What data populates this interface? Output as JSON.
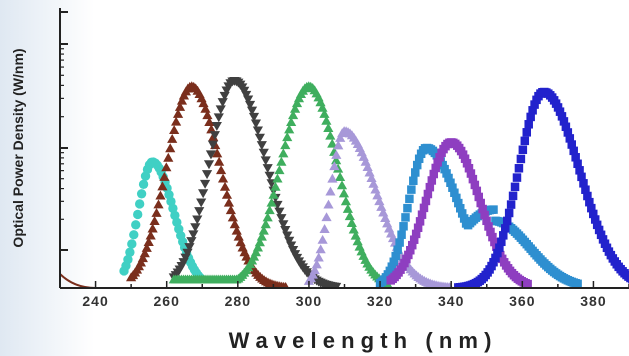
{
  "chart_data": {
    "type": "scatter",
    "xlabel": "W a v e l e n g t h   ( n m )",
    "ylabel": "Optical Power Density (W/nm)",
    "xlim": [
      230,
      390
    ],
    "ylim": [
      0,
      100
    ],
    "x_ticks": [
      240,
      260,
      280,
      300,
      320,
      340,
      360,
      380
    ],
    "legend": "none",
    "grid": false,
    "series": [
      {
        "color": "#40d0c4",
        "marker": "circle",
        "peak": 256,
        "width_left": 4,
        "width_right": 6,
        "amplitude": 45,
        "x_start": 248,
        "x_end": 270
      },
      {
        "color": "#7a2e1c",
        "marker": "triangle-up",
        "peak": 267,
        "width_left": 7,
        "width_right": 8,
        "amplitude": 72,
        "x_start": 250,
        "x_end": 294
      },
      {
        "color": "#404040",
        "marker": "triangle-down",
        "peak": 279,
        "width_left": 7,
        "width_right": 9,
        "amplitude": 74,
        "x_start": 262,
        "x_end": 308
      },
      {
        "color": "#3fae5e",
        "marker": "triangle-up",
        "peak": 300,
        "width_left": 8,
        "width_right": 8,
        "amplitude": 72,
        "x_start": 262,
        "x_end": 322
      },
      {
        "color": "#a798d8",
        "marker": "triangle-up",
        "peak": 310,
        "width_left": 4,
        "width_right": 9,
        "amplitude": 56,
        "x_start": 300,
        "x_end": 340
      },
      {
        "color": "#2e8fd0",
        "marker": "square",
        "peak": 333,
        "width_left": 5,
        "width_right": 9,
        "amplitude": 50,
        "x_start": 320,
        "x_end": 376
      },
      {
        "color": "#8e3ec0",
        "marker": "square",
        "peak": 340,
        "width_left": 7,
        "width_right": 8,
        "amplitude": 52,
        "x_start": 323,
        "x_end": 362
      },
      {
        "color": "#2222cc",
        "marker": "square",
        "peak": 366,
        "width_left": 7,
        "width_right": 10,
        "amplitude": 70,
        "x_start": 342,
        "x_end": 392
      }
    ]
  }
}
